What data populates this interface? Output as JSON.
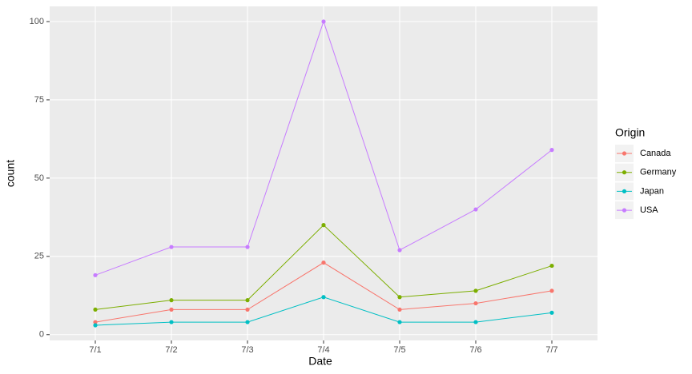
{
  "chart_data": {
    "type": "line",
    "x_label": "Date",
    "y_label": "count",
    "categories": [
      "7/1",
      "7/2",
      "7/3",
      "7/4",
      "7/5",
      "7/6",
      "7/7"
    ],
    "series": [
      {
        "name": "Canada",
        "color": "#F8766D",
        "values": [
          4,
          8,
          8,
          23,
          8,
          10,
          14
        ]
      },
      {
        "name": "Germany",
        "color": "#7CAE00",
        "values": [
          8,
          11,
          11,
          35,
          12,
          14,
          22
        ]
      },
      {
        "name": "Japan",
        "color": "#00BFC4",
        "values": [
          3,
          4,
          4,
          12,
          4,
          4,
          7
        ]
      },
      {
        "name": "USA",
        "color": "#C77CFF",
        "values": [
          19,
          28,
          28,
          100,
          27,
          40,
          59
        ]
      }
    ],
    "legend_title": "Origin",
    "ylim": [
      -1.85,
      104.85
    ],
    "yticks": [
      0,
      25,
      50,
      75,
      100
    ],
    "grid": true
  }
}
